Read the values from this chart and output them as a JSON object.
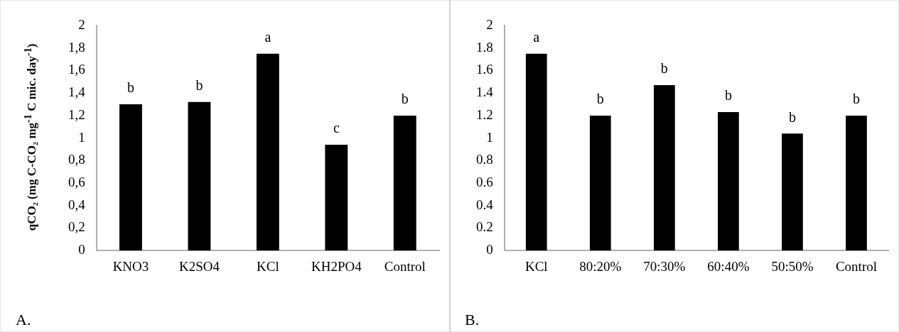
{
  "chart_data": [
    {
      "type": "bar",
      "categories": [
        "KNO3",
        "K2SO4",
        "KCl",
        "KH2PO4",
        "Control"
      ],
      "values": [
        1.3,
        1.32,
        1.75,
        0.94,
        1.2
      ],
      "color": "#000000",
      "ylabel": "qCO₂ (mg C-CO₂ mg$^{-1}$ C mic. day$^{-1}$)",
      "ylim": [
        0,
        2
      ],
      "yticks": [
        0,
        {
          "value": 0.2,
          "label": "0,2"
        },
        {
          "value": 0.4,
          "label": "0,4"
        },
        {
          "value": 0.6,
          "label": "0,6"
        },
        {
          "value": 0.8,
          "label": "0,8"
        },
        1,
        {
          "value": 1.2,
          "label": "1,2"
        },
        {
          "value": 1.4,
          "label": "1,4"
        },
        {
          "value": 1.6,
          "label": "1,6"
        },
        {
          "value": 1.8,
          "label": "1,8"
        },
        2
      ],
      "grid": false,
      "legend": false,
      "annotations": [
        {
          "text": "b",
          "x": "KNO3",
          "y": 1.3
        },
        {
          "text": "b",
          "x": "K2SO4",
          "y": 1.32
        },
        {
          "text": "a",
          "x": "KCl",
          "y": 1.75
        },
        {
          "text": "c",
          "x": "KH2PO4",
          "y": 0.94
        },
        {
          "text": "b",
          "x": "Control",
          "y": 1.2
        },
        "A."
      ]
    },
    {
      "type": "bar",
      "categories": [
        "KCl",
        "80:20%",
        "70:30%",
        "60:40%",
        "50:50%",
        "Control"
      ],
      "values": [
        1.75,
        1.2,
        1.47,
        1.23,
        1.04,
        1.2
      ],
      "color": "#000000",
      "ylim": [
        0,
        2
      ],
      "yticks": [
        0,
        0.2,
        0.4,
        0.6,
        0.8,
        1,
        1.2,
        1.4,
        1.6,
        1.8,
        2
      ],
      "grid": false,
      "legend": false,
      "annotations": [
        {
          "text": "a",
          "x": "KCl",
          "y": 1.75
        },
        {
          "text": "b",
          "x": "80:20%",
          "y": 1.2
        },
        {
          "text": "b",
          "x": "70:30%",
          "y": 1.47
        },
        {
          "text": "b",
          "x": "60:40%",
          "y": 1.23
        },
        {
          "text": "b",
          "x": "50:50%",
          "y": 1.04
        },
        {
          "text": "b",
          "x": "Control",
          "y": 1.2
        },
        "B."
      ]
    }
  ]
}
